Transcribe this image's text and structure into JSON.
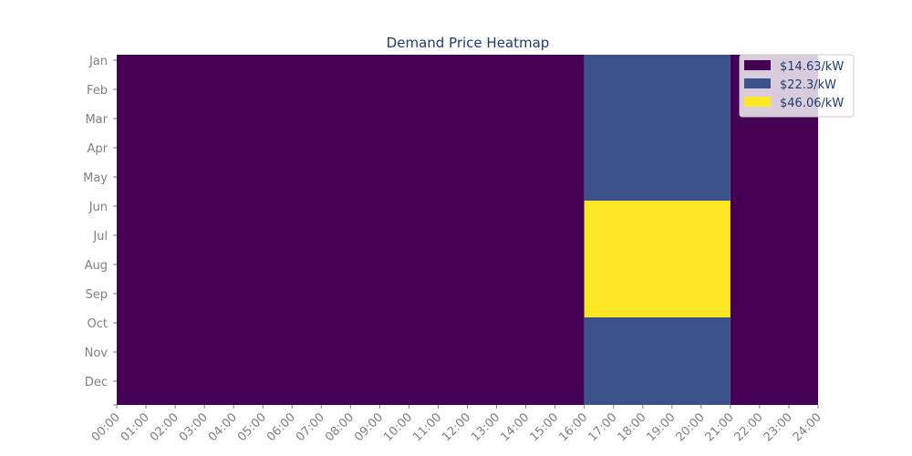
{
  "chart_data": {
    "type": "heatmap",
    "title": "Demand Price Heatmap",
    "xlabel": "",
    "ylabel": "",
    "x_ticks": [
      "00:00",
      "01:00",
      "02:00",
      "03:00",
      "04:00",
      "05:00",
      "06:00",
      "07:00",
      "08:00",
      "09:00",
      "10:00",
      "11:00",
      "12:00",
      "13:00",
      "14:00",
      "15:00",
      "16:00",
      "17:00",
      "18:00",
      "19:00",
      "20:00",
      "21:00",
      "22:00",
      "23:00",
      "24:00"
    ],
    "y_ticks": [
      "Jan",
      "Feb",
      "Mar",
      "Apr",
      "May",
      "Jun",
      "Jul",
      "Aug",
      "Sep",
      "Oct",
      "Nov",
      "Dec"
    ],
    "xlim": [
      0,
      24
    ],
    "ylim": [
      0,
      12
    ],
    "grid": false,
    "legend_position": "top-right",
    "levels": [
      {
        "label": "$14.63/kW",
        "value": 14.63,
        "color": "#440154"
      },
      {
        "label": "$22.3/kW",
        "value": 22.3,
        "color": "#3b528b"
      },
      {
        "label": "$46.06/kW",
        "value": 46.06,
        "color": "#fde725"
      }
    ],
    "regions": [
      {
        "hours": [
          0,
          16
        ],
        "months": [
          0,
          12
        ],
        "level": 0
      },
      {
        "hours": [
          16,
          21
        ],
        "months": [
          0,
          5
        ],
        "level": 1
      },
      {
        "hours": [
          16,
          21
        ],
        "months": [
          5,
          9
        ],
        "level": 2
      },
      {
        "hours": [
          16,
          21
        ],
        "months": [
          9,
          12
        ],
        "level": 1
      },
      {
        "hours": [
          21,
          24
        ],
        "months": [
          0,
          12
        ],
        "level": 0
      }
    ]
  }
}
